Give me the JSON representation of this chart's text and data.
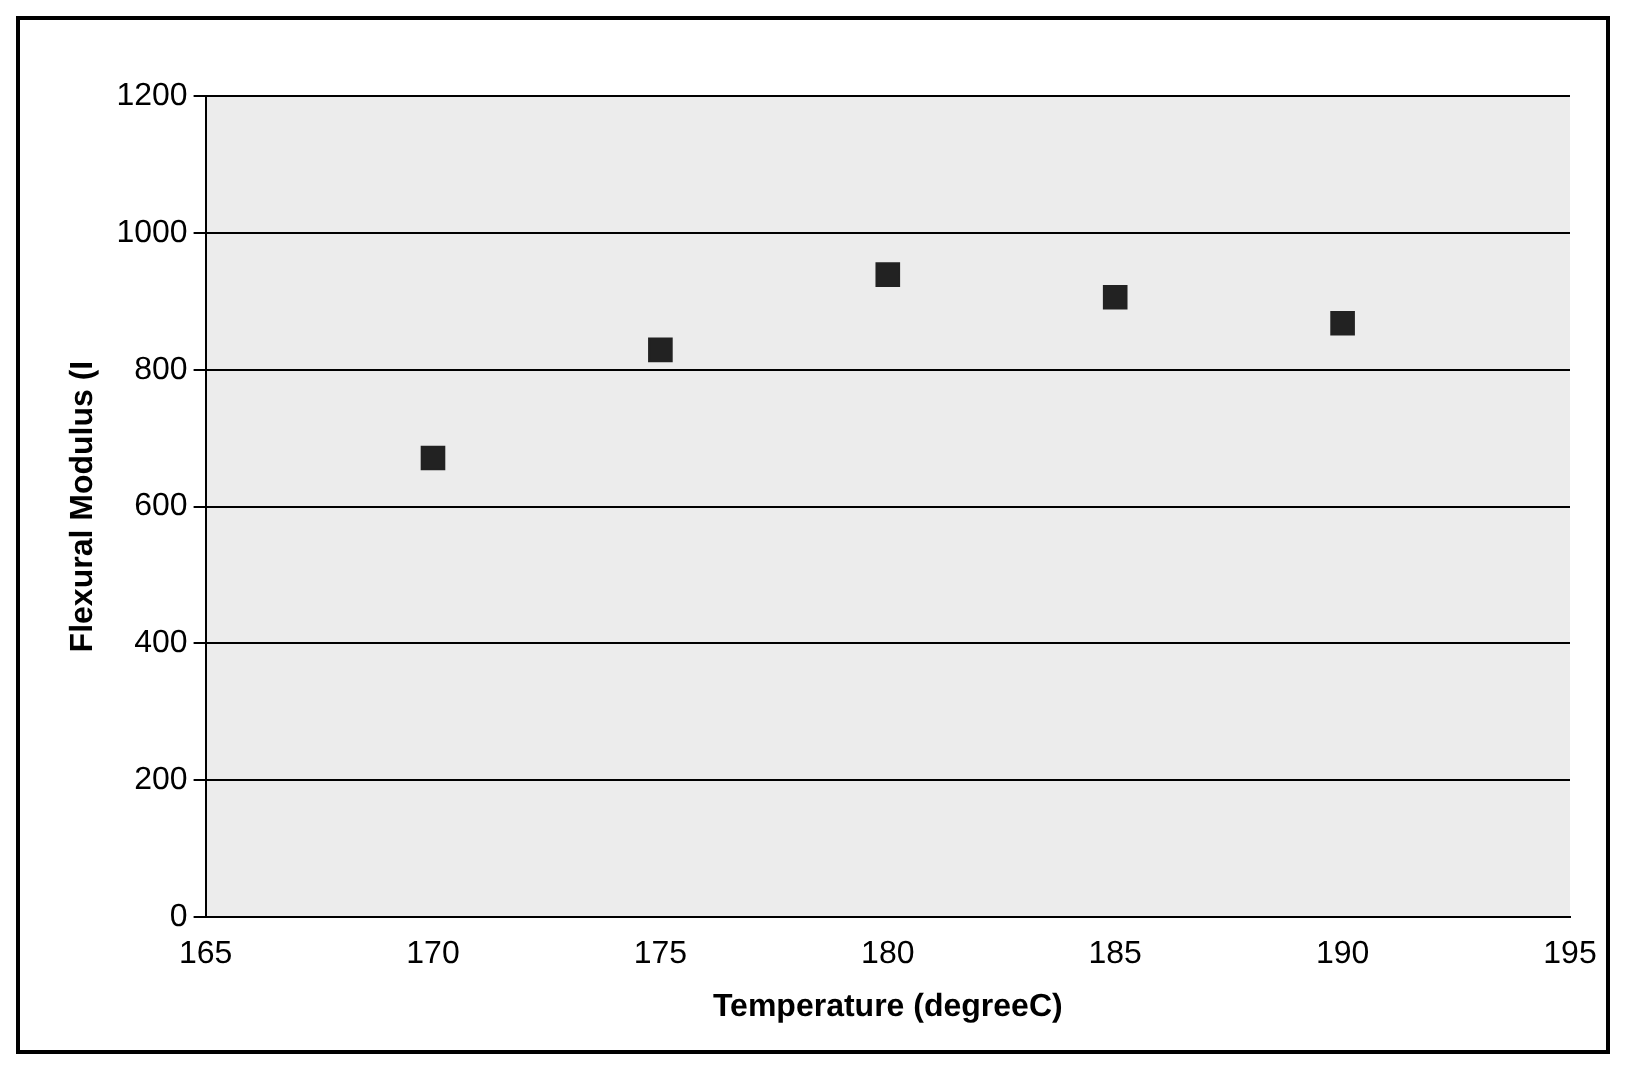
{
  "chart_data": {
    "type": "scatter",
    "xlabel": "Temperature (degreeC)",
    "ylabel": "Flexural Modulus (I",
    "x": [
      170,
      175,
      180,
      185,
      190
    ],
    "series": [
      {
        "color": "#222222",
        "values": [
          671,
          829,
          939,
          906,
          868
        ]
      }
    ],
    "xlim": [
      165,
      195
    ],
    "xticks": [
      165,
      170,
      175,
      180,
      185,
      190,
      195
    ],
    "ylim": [
      0,
      1200
    ],
    "yticks": [
      0,
      200,
      400,
      600,
      800,
      1000,
      1200
    ],
    "grid": "y",
    "marker": "square",
    "legend": false
  }
}
